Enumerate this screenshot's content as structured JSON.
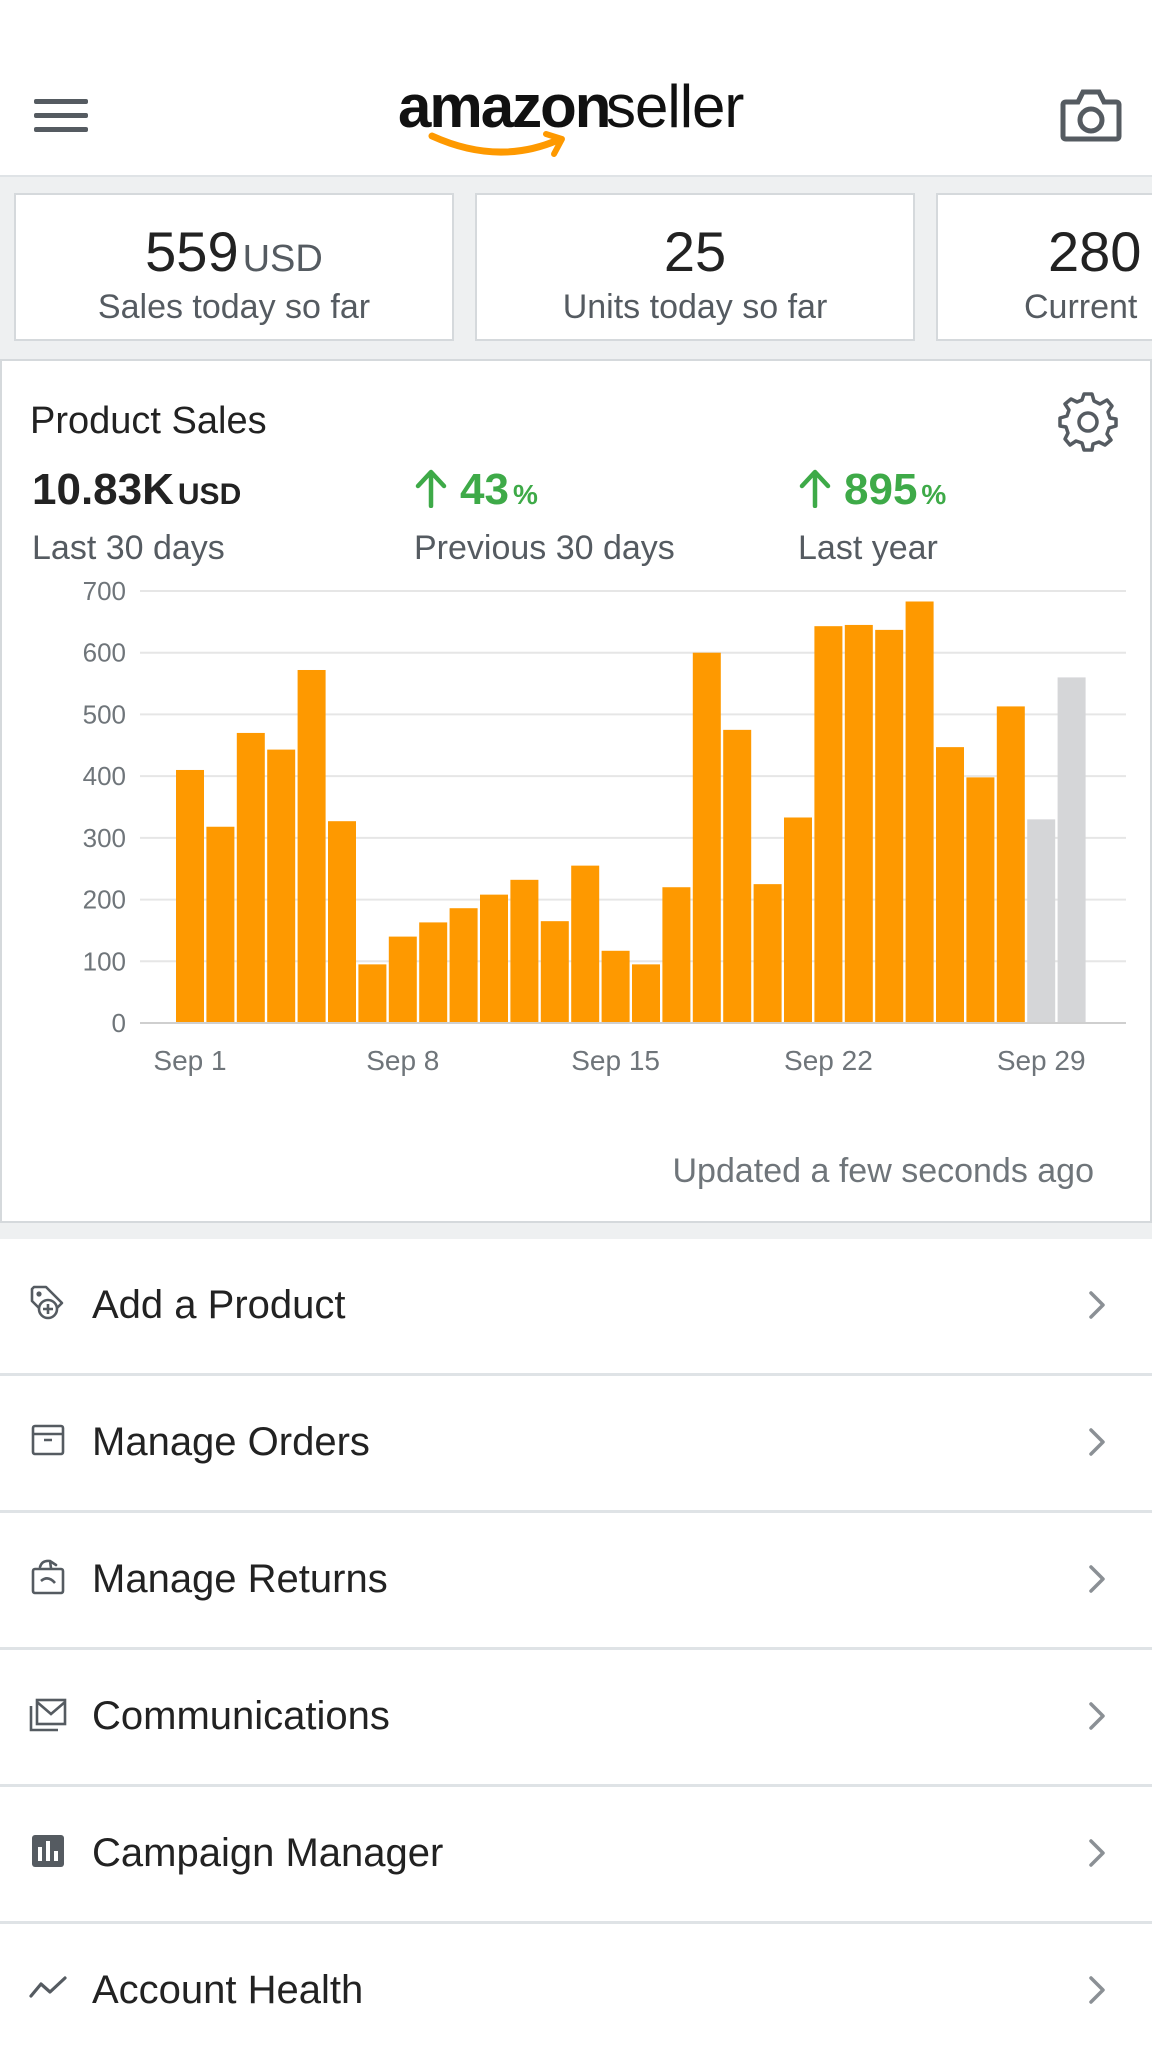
{
  "header": {
    "logo_amazon": "amazon",
    "logo_seller": "seller",
    "menu_icon": "hamburger-menu-icon",
    "camera_icon": "camera-icon"
  },
  "metrics": [
    {
      "value": "559",
      "unit": "USD",
      "label": "Sales today so far"
    },
    {
      "value": "25",
      "unit": "",
      "label": "Units today so far"
    },
    {
      "value": "280",
      "unit": "",
      "label": "Current"
    }
  ],
  "product_sales": {
    "title": "Product Sales",
    "settings_icon": "gear-icon",
    "stats": [
      {
        "value": "10.83K",
        "unit": "USD",
        "label": "Last 30 days",
        "trend": "none"
      },
      {
        "value": "43",
        "unit": "%",
        "label": "Previous 30 days",
        "trend": "up"
      },
      {
        "value": "895",
        "unit": "%",
        "label": "Last year",
        "trend": "up"
      }
    ],
    "updated": "Updated a few seconds ago"
  },
  "chart_data": {
    "type": "bar",
    "title": "",
    "xlabel": "",
    "ylabel": "",
    "ylim": [
      0,
      700
    ],
    "yticks": [
      0,
      100,
      200,
      300,
      400,
      500,
      600,
      700
    ],
    "xtick_labels": [
      "Sep 1",
      "Sep 8",
      "Sep 15",
      "Sep 22",
      "Sep 29"
    ],
    "grid": true,
    "categories": [
      "Sep 1",
      "Sep 2",
      "Sep 3",
      "Sep 4",
      "Sep 5",
      "Sep 6",
      "Sep 7",
      "Sep 8",
      "Sep 9",
      "Sep 10",
      "Sep 11",
      "Sep 12",
      "Sep 13",
      "Sep 14",
      "Sep 15",
      "Sep 16",
      "Sep 17",
      "Sep 18",
      "Sep 19",
      "Sep 20",
      "Sep 21",
      "Sep 22",
      "Sep 23",
      "Sep 24",
      "Sep 25",
      "Sep 26",
      "Sep 27",
      "Sep 28",
      "Sep 29",
      "Sep 30"
    ],
    "values": [
      410,
      318,
      470,
      443,
      572,
      327,
      95,
      140,
      163,
      186,
      208,
      232,
      165,
      255,
      117,
      95,
      220,
      600,
      475,
      225,
      333,
      643,
      645,
      637,
      683,
      447,
      398,
      513,
      330,
      560
    ],
    "bar_colors": [
      "#fe9900",
      "#fe9900",
      "#fe9900",
      "#fe9900",
      "#fe9900",
      "#fe9900",
      "#fe9900",
      "#fe9900",
      "#fe9900",
      "#fe9900",
      "#fe9900",
      "#fe9900",
      "#fe9900",
      "#fe9900",
      "#fe9900",
      "#fe9900",
      "#fe9900",
      "#fe9900",
      "#fe9900",
      "#fe9900",
      "#fe9900",
      "#fe9900",
      "#fe9900",
      "#fe9900",
      "#fe9900",
      "#fe9900",
      "#fe9900",
      "#fe9900",
      "#d5d6d8",
      "#d5d6d8"
    ]
  },
  "menu": [
    {
      "label": "Add a Product",
      "icon": "tag-plus-icon"
    },
    {
      "label": "Manage Orders",
      "icon": "box-icon"
    },
    {
      "label": "Manage Returns",
      "icon": "return-box-icon"
    },
    {
      "label": "Communications",
      "icon": "mail-icon"
    },
    {
      "label": "Campaign Manager",
      "icon": "bar-chart-icon"
    },
    {
      "label": "Account Health",
      "icon": "trend-line-icon"
    }
  ],
  "colors": {
    "accent_orange": "#fe9900",
    "positive_green": "#3eaa48",
    "future_bar_gray": "#d5d6d8"
  }
}
